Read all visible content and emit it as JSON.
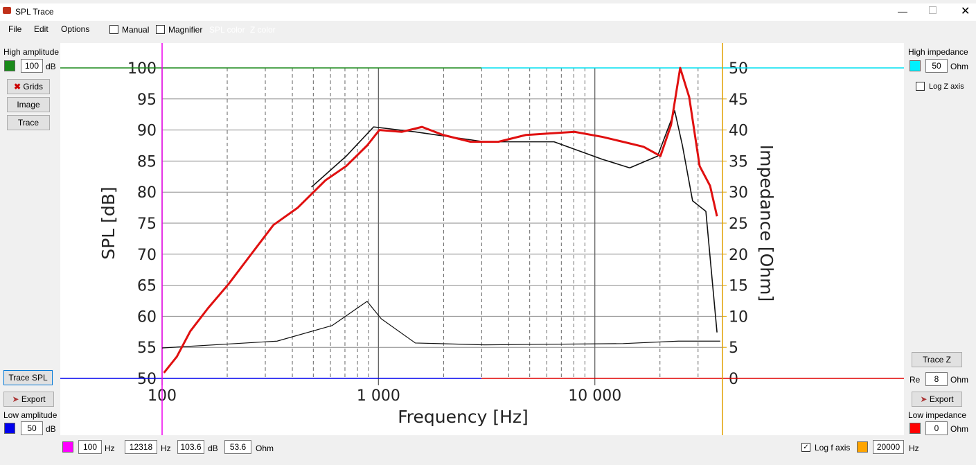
{
  "window": {
    "title": "SPL Trace"
  },
  "menu": [
    "File",
    "Edit",
    "Options"
  ],
  "toolbar": {
    "manual": "Manual",
    "magnifier": "Magnifier",
    "spl_color": "SPL color",
    "z_color": "Z color"
  },
  "left_panel": {
    "high_amplitude_label": "High amplitude",
    "high_amplitude_value": "100",
    "high_unit": "dB",
    "grids": "Grids",
    "image": "Image",
    "trace": "Trace",
    "trace_spl": "Trace SPL",
    "export": "Export",
    "low_amplitude_label": "Low amplitude",
    "low_amplitude_value": "50",
    "low_unit": "dB"
  },
  "right_panel": {
    "high_impedance_label": "High impedance",
    "high_impedance_value": "50",
    "high_unit": "Ohm",
    "log_z": "Log Z axis",
    "trace_z": "Trace Z",
    "re_label": "Re",
    "re_value": "8",
    "re_unit": "Ohm",
    "export": "Export",
    "low_impedance_label": "Low impedance",
    "low_impedance_value": "0",
    "low_unit": "Ohm"
  },
  "status": {
    "f_value": "100",
    "f_unit": "Hz",
    "cursor_f": "12318",
    "cursor_f_unit": "Hz",
    "cursor_spl": "103.6",
    "cursor_spl_unit": "dB",
    "cursor_z": "53.6",
    "cursor_z_unit": "Ohm",
    "log_f": "Log f axis",
    "fmax": "20000",
    "fmax_unit": "Hz"
  },
  "chart_data": {
    "type": "line",
    "xlabel": "Frequency [Hz]",
    "ylabel": "SPL [dB]",
    "y2label": "Impedance [Ohm]",
    "log_x": true,
    "xlim": [
      100,
      38900
    ],
    "xticks": [
      100,
      {
        "value": 1000,
        "label": "1 000"
      },
      {
        "value": 10000,
        "label": "10 000"
      }
    ],
    "xminorticks": [
      200,
      300,
      400,
      500,
      600,
      700,
      800,
      900,
      2000,
      3000,
      4000,
      5000,
      6000,
      7000,
      8000,
      9000,
      20000,
      30000
    ],
    "ylim": [
      50,
      100
    ],
    "yticks": [
      50,
      55,
      60,
      65,
      70,
      75,
      80,
      85,
      90,
      95,
      100
    ],
    "y2lim": [
      0,
      50
    ],
    "y2ticks": [
      0,
      5,
      10,
      15,
      20,
      25,
      30,
      35,
      40,
      45,
      50
    ],
    "grid": true,
    "series": [
      {
        "color": "#111111",
        "width": 1.6,
        "x": [
          490,
          710,
          950,
          1480,
          3090,
          6480,
          10800,
          14500,
          19500,
          23400,
          25400,
          28300,
          32600,
          36700
        ],
        "values": [
          80.8,
          85.8,
          90.5,
          89.7,
          88.1,
          88.1,
          85.3,
          83.9,
          85.8,
          93.1,
          87.5,
          78.6,
          76.9,
          57.4
        ]
      },
      {
        "color": "#111111",
        "width": 1.2,
        "axis": "y2",
        "x": [
          100,
          340,
          610,
          886,
          1030,
          1480,
          3090,
          13500,
          24300,
          38000
        ],
        "values": [
          4.9,
          6.0,
          8.5,
          12.4,
          9.6,
          5.7,
          5.4,
          5.6,
          6.0,
          6.0
        ]
      },
      {
        "color": "#e01010",
        "width": 3,
        "x": [
          102,
          117,
          135,
          163,
          203,
          253,
          327,
          424,
          569,
          710,
          886,
          1010,
          1280,
          1590,
          1990,
          2670,
          3580,
          4800,
          6480,
          8060,
          10800,
          13500,
          16800,
          20100,
          22500,
          24800,
          27300,
          30500,
          34100,
          36700
        ],
        "values": [
          50.9,
          53.5,
          57.6,
          61.3,
          65.2,
          69.6,
          74.7,
          77.5,
          81.9,
          84.2,
          87.5,
          90,
          89.7,
          90.5,
          89.2,
          88.1,
          88.1,
          89.2,
          89.5,
          89.7,
          88.9,
          88.1,
          87.3,
          85.8,
          90.8,
          100,
          95.3,
          84.2,
          81.0,
          76.1
        ]
      }
    ]
  }
}
